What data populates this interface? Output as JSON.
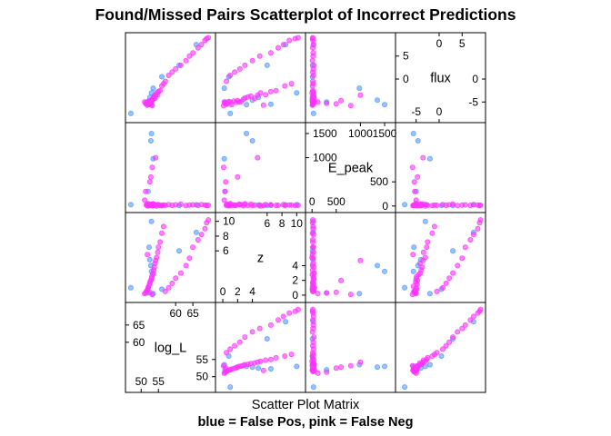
{
  "title": "Found/Missed Pairs Scatterplot of Incorrect Predictions",
  "xlabel": "Scatter Plot Matrix",
  "subtitle": "blue = False Pos, pink = False Neg",
  "chart_data": {
    "type": "scatter",
    "plot_kind": "scatter plot matrix",
    "variables": [
      "log_L",
      "z",
      "E_peak",
      "flux"
    ],
    "ranges": {
      "log_L": [
        46.5,
        70.5
      ],
      "z": [
        -0.5,
        10.7
      ],
      "E_peak": [
        -60,
        1650
      ],
      "flux": [
        -8.7,
        9.3
      ]
    },
    "axis_ticks": {
      "log_L": {
        "bottom": [
          "50",
          "55"
        ],
        "top": [
          "60",
          "65"
        ]
      },
      "z": {
        "bottom": [
          "0",
          "2",
          "4"
        ],
        "top": [
          "6",
          "8",
          "10"
        ]
      },
      "E_peak": {
        "bottom": [
          "0",
          "500"
        ],
        "top": [
          "1000",
          "1500"
        ]
      },
      "flux": {
        "bottom": [
          "-5",
          "0"
        ],
        "top": [
          "0",
          "5"
        ]
      }
    },
    "series": [
      {
        "name": "False Pos",
        "color": "#5599ff",
        "points": [
          {
            "log_L": 47.0,
            "z": 1.0,
            "E_peak": 30,
            "flux": -7.5
          },
          {
            "log_L": 52.0,
            "z": 0.3,
            "E_peak": 300,
            "flux": -5.0
          },
          {
            "log_L": 52.5,
            "z": 4.8,
            "E_peak": 20,
            "flux": -4.0
          },
          {
            "log_L": 53.0,
            "z": 10.0,
            "E_peak": 30,
            "flux": -3.0
          },
          {
            "log_L": 53.0,
            "z": 3.2,
            "E_peak": 1500,
            "flux": -5.6
          },
          {
            "log_L": 53.5,
            "z": 0.2,
            "E_peak": 980,
            "flux": -2.0
          },
          {
            "log_L": 56.0,
            "z": 0.8,
            "E_peak": 10,
            "flux": 0.5
          },
          {
            "log_L": 61.0,
            "z": 6.0,
            "E_peak": 10,
            "flux": 3.0
          },
          {
            "log_L": 66.0,
            "z": 8.5,
            "E_peak": 25,
            "flux": 7.5
          },
          {
            "log_L": 52.3,
            "z": 6.5,
            "E_peak": 15,
            "flux": -5.5
          },
          {
            "log_L": 52.8,
            "z": 4.0,
            "E_peak": 1350,
            "flux": -4.6
          }
        ]
      },
      {
        "name": "False Neg",
        "color": "#ff33ff",
        "points": [
          {
            "log_L": 51.0,
            "z": 0.2,
            "E_peak": 120,
            "flux": -5.0
          },
          {
            "log_L": 51.3,
            "z": 0.3,
            "E_peak": 300,
            "flux": -5.3
          },
          {
            "log_L": 51.5,
            "z": 0.5,
            "E_peak": 20,
            "flux": -5.5
          },
          {
            "log_L": 51.7,
            "z": 0.6,
            "E_peak": 35,
            "flux": -5.2
          },
          {
            "log_L": 51.9,
            "z": 0.8,
            "E_peak": 5,
            "flux": -4.9
          },
          {
            "log_L": 52.0,
            "z": 1.0,
            "E_peak": 50,
            "flux": -5.0
          },
          {
            "log_L": 52.2,
            "z": 1.2,
            "E_peak": 10,
            "flux": -5.6
          },
          {
            "log_L": 52.4,
            "z": 1.5,
            "E_peak": 25,
            "flux": -4.8
          },
          {
            "log_L": 52.6,
            "z": 1.8,
            "E_peak": 15,
            "flux": -5.1
          },
          {
            "log_L": 52.8,
            "z": 2.0,
            "E_peak": 600,
            "flux": -4.7
          },
          {
            "log_L": 53.0,
            "z": 2.2,
            "E_peak": 40,
            "flux": -5.0
          },
          {
            "log_L": 53.1,
            "z": 2.5,
            "E_peak": 30,
            "flux": -4.9
          },
          {
            "log_L": 53.3,
            "z": 2.8,
            "E_peak": 5,
            "flux": -4.4
          },
          {
            "log_L": 53.5,
            "z": 3.0,
            "E_peak": 45,
            "flux": -4.1
          },
          {
            "log_L": 53.6,
            "z": 3.4,
            "E_peak": 10,
            "flux": -3.9
          },
          {
            "log_L": 53.8,
            "z": 3.8,
            "E_peak": 35,
            "flux": -3.7
          },
          {
            "log_L": 54.0,
            "z": 4.3,
            "E_peak": 20,
            "flux": -4.2
          },
          {
            "log_L": 54.2,
            "z": 4.7,
            "E_peak": 1000,
            "flux": -3.5
          },
          {
            "log_L": 54.5,
            "z": 5.1,
            "E_peak": 0,
            "flux": -3.0
          },
          {
            "log_L": 54.8,
            "z": 5.8,
            "E_peak": 30,
            "flux": -3.4
          },
          {
            "log_L": 55.0,
            "z": 6.5,
            "E_peak": 25,
            "flux": -2.7
          },
          {
            "log_L": 55.5,
            "z": 7.2,
            "E_peak": 15,
            "flux": -2.5
          },
          {
            "log_L": 56.0,
            "z": 8.4,
            "E_peak": 10,
            "flux": -1.5
          },
          {
            "log_L": 56.5,
            "z": 9.3,
            "E_peak": 20,
            "flux": -1.0
          },
          {
            "log_L": 57.0,
            "z": 0.5,
            "E_peak": 15,
            "flux": -0.5
          },
          {
            "log_L": 58.0,
            "z": 1.0,
            "E_peak": 30,
            "flux": 0.8
          },
          {
            "log_L": 59.0,
            "z": 1.6,
            "E_peak": 15,
            "flux": 1.5
          },
          {
            "log_L": 60.0,
            "z": 2.3,
            "E_peak": 25,
            "flux": 2.2
          },
          {
            "log_L": 61.5,
            "z": 3.0,
            "E_peak": 40,
            "flux": 3.0
          },
          {
            "log_L": 63.0,
            "z": 4.0,
            "E_peak": 10,
            "flux": 4.0
          },
          {
            "log_L": 64.0,
            "z": 5.0,
            "E_peak": 20,
            "flux": 5.0
          },
          {
            "log_L": 65.0,
            "z": 6.5,
            "E_peak": 25,
            "flux": 5.7
          },
          {
            "log_L": 66.5,
            "z": 7.5,
            "E_peak": 15,
            "flux": 6.8
          },
          {
            "log_L": 67.5,
            "z": 8.2,
            "E_peak": 30,
            "flux": 7.5
          },
          {
            "log_L": 68.5,
            "z": 9.0,
            "E_peak": 20,
            "flux": 8.4
          },
          {
            "log_L": 69.0,
            "z": 9.8,
            "E_peak": 10,
            "flux": 8.8
          },
          {
            "log_L": 69.5,
            "z": 10.2,
            "E_peak": 15,
            "flux": 9.0
          },
          {
            "log_L": 53.2,
            "z": 0.1,
            "E_peak": 800,
            "flux": -5.8
          },
          {
            "log_L": 52.5,
            "z": 0.4,
            "E_peak": 500,
            "flux": -5.4
          },
          {
            "log_L": 51.8,
            "z": 5.5,
            "E_peak": 10,
            "flux": -5.7
          }
        ]
      }
    ]
  }
}
